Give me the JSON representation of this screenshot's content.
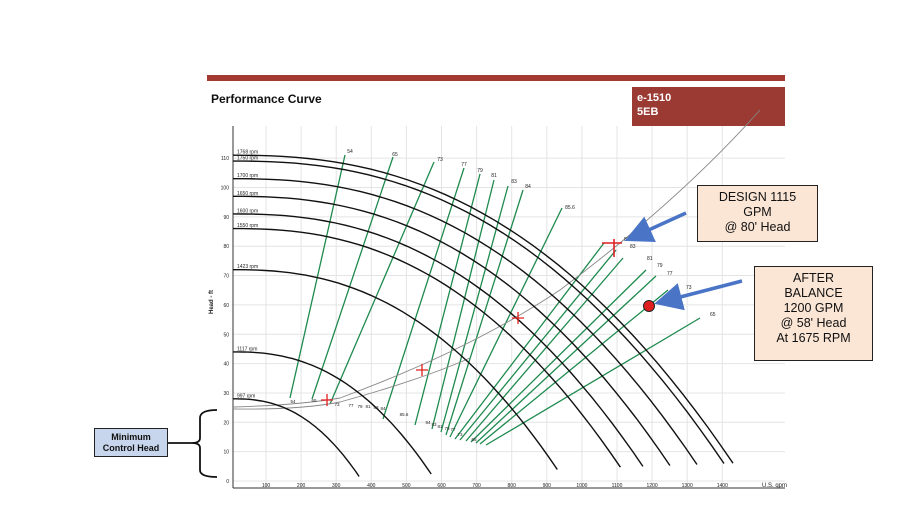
{
  "header": {
    "title": "Performance Curve",
    "model": "e-1510",
    "size": "5EB"
  },
  "callouts": {
    "design": [
      "DESIGN 1115",
      "GPM",
      "@ 80' Head"
    ],
    "after": [
      "AFTER",
      "BALANCE",
      "1200 GPM",
      "@ 58' Head",
      "At 1675 RPM"
    ],
    "min_control": [
      "Minimum",
      "Control Head"
    ]
  },
  "colors": {
    "speed_curve": "#111111",
    "efficiency_curve": "#1e8a4e",
    "system_curve": "#888888",
    "accent": "#a33a32",
    "arrow": "#4a74c6",
    "marker": "#e02020"
  },
  "chart_data": {
    "type": "line",
    "ylabel": "Head - ft",
    "xlabel": "U.S. gpm",
    "ylim": [
      0,
      115
    ],
    "yticks": [
      0,
      10,
      20,
      30,
      40,
      50,
      60,
      70,
      80,
      90,
      100,
      110
    ],
    "xticks": [
      "100",
      "200",
      "300",
      "400",
      "500",
      "600",
      "700",
      "800",
      "900",
      "1000",
      "1100",
      "1200",
      "1300",
      "1400"
    ],
    "speed_curves": [
      {
        "label": "1768 rpm",
        "head": 111
      },
      {
        "label": "1750 rpm",
        "head": 109
      },
      {
        "label": "1700 rpm",
        "head": 103
      },
      {
        "label": "1650 rpm",
        "head": 97
      },
      {
        "label": "1600 rpm",
        "head": 91
      },
      {
        "label": "1550 rpm",
        "head": 86
      },
      {
        "label": "1423 rpm",
        "head": 72
      },
      {
        "label": "1117 rpm",
        "head": 44
      },
      {
        "label": "997 rpm",
        "head": 28
      }
    ],
    "efficiency_labels": [
      "54",
      "65",
      "73",
      "77",
      "79",
      "81",
      "83",
      "84",
      "85.6"
    ],
    "right_efficiency_labels": [
      "84",
      "83",
      "81",
      "79",
      "77",
      "73",
      "65"
    ],
    "low_efficiency_labels": [
      "54",
      "65",
      "73",
      "77",
      "79",
      "81",
      "83",
      "84",
      "85.6",
      "84",
      "83",
      "81",
      "79",
      "77",
      "73",
      "65"
    ],
    "design_point": {
      "gpm": 1115,
      "head": 80
    },
    "after_point": {
      "gpm": 1200,
      "head": 58,
      "rpm": 1675
    }
  }
}
